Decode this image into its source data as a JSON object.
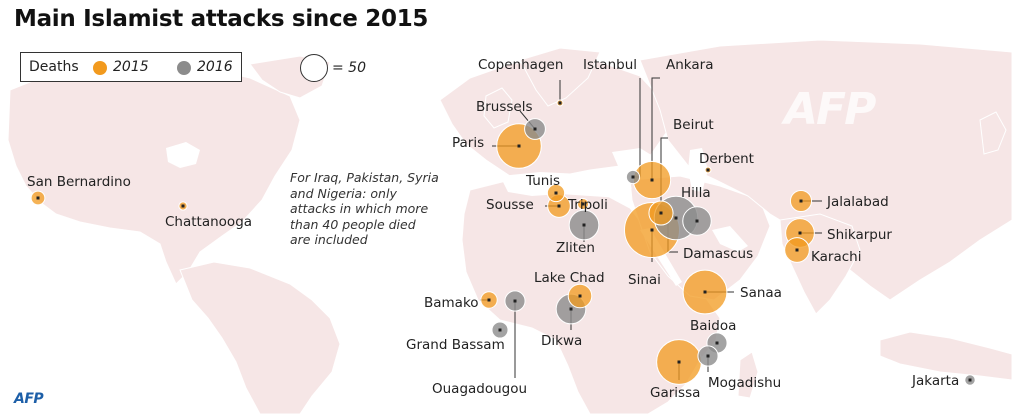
{
  "title": "Main Islamist attacks since 2015",
  "legend": {
    "label": "Deaths",
    "items": [
      {
        "label": "2015",
        "color": "#f29a1e"
      },
      {
        "label": "2016",
        "color": "#8c8c8c"
      }
    ],
    "scale_label": "= 50"
  },
  "note": "For Iraq, Pakistan, Syria and Nigeria: only attacks in which more than 40 people died are included",
  "colors": {
    "land": "#f6e6e6",
    "water": "#ffffff",
    "lakes": "#ffffff",
    "year_2015": "#f29a1e",
    "year_2016": "#8c8c8c"
  },
  "attacks": [
    {
      "city": "San Bernardino",
      "year": 2015,
      "deaths": 14
    },
    {
      "city": "Chattanooga",
      "year": 2015,
      "deaths": 5
    },
    {
      "city": "Copenhagen",
      "year": 2015,
      "deaths": 2
    },
    {
      "city": "Brussels",
      "year": 2016,
      "deaths": 32
    },
    {
      "city": "Paris",
      "year": 2015,
      "deaths": 147
    },
    {
      "city": "Istanbul",
      "year": 2016,
      "deaths": 13
    },
    {
      "city": "Ankara",
      "year": 2015,
      "deaths": 103
    },
    {
      "city": "Beirut",
      "year": 2015,
      "deaths": 43
    },
    {
      "city": "Derbent",
      "year": 2015,
      "deaths": 1
    },
    {
      "city": "Tunis",
      "year": 2015,
      "deaths": 22
    },
    {
      "city": "Sousse",
      "year": 2015,
      "deaths": 38
    },
    {
      "city": "Tripoli",
      "year": 2015,
      "deaths": 9
    },
    {
      "city": "Zliten",
      "year": 2016,
      "deaths": 65
    },
    {
      "city": "Hilla",
      "year": 2016,
      "deaths": 60
    },
    {
      "city": "Damascus",
      "year": 2016,
      "deaths": 140
    },
    {
      "city": "Sinai",
      "year": 2015,
      "deaths": 224
    },
    {
      "city": "Jalalabad",
      "year": 2015,
      "deaths": 33
    },
    {
      "city": "Shikarpur",
      "year": 2015,
      "deaths": 61
    },
    {
      "city": "Karachi",
      "year": 2015,
      "deaths": 45
    },
    {
      "city": "Lake Chad",
      "year": 2015,
      "deaths": 41
    },
    {
      "city": "Bamako",
      "year": 2015,
      "deaths": 20
    },
    {
      "city": "Ouagadougou",
      "year": 2016,
      "deaths": 30
    },
    {
      "city": "Dikwa",
      "year": 2016,
      "deaths": 65
    },
    {
      "city": "Grand Bassam",
      "year": 2016,
      "deaths": 19
    },
    {
      "city": "Sanaa",
      "year": 2015,
      "deaths": 142
    },
    {
      "city": "Baidoa",
      "year": 2016,
      "deaths": 30
    },
    {
      "city": "Mogadishu",
      "year": 2016,
      "deaths": 30
    },
    {
      "city": "Garissa",
      "year": 2015,
      "deaths": 148
    },
    {
      "city": "Jakarta",
      "year": 2016,
      "deaths": 8
    }
  ],
  "watermark": "AFP",
  "logo": "AFP"
}
